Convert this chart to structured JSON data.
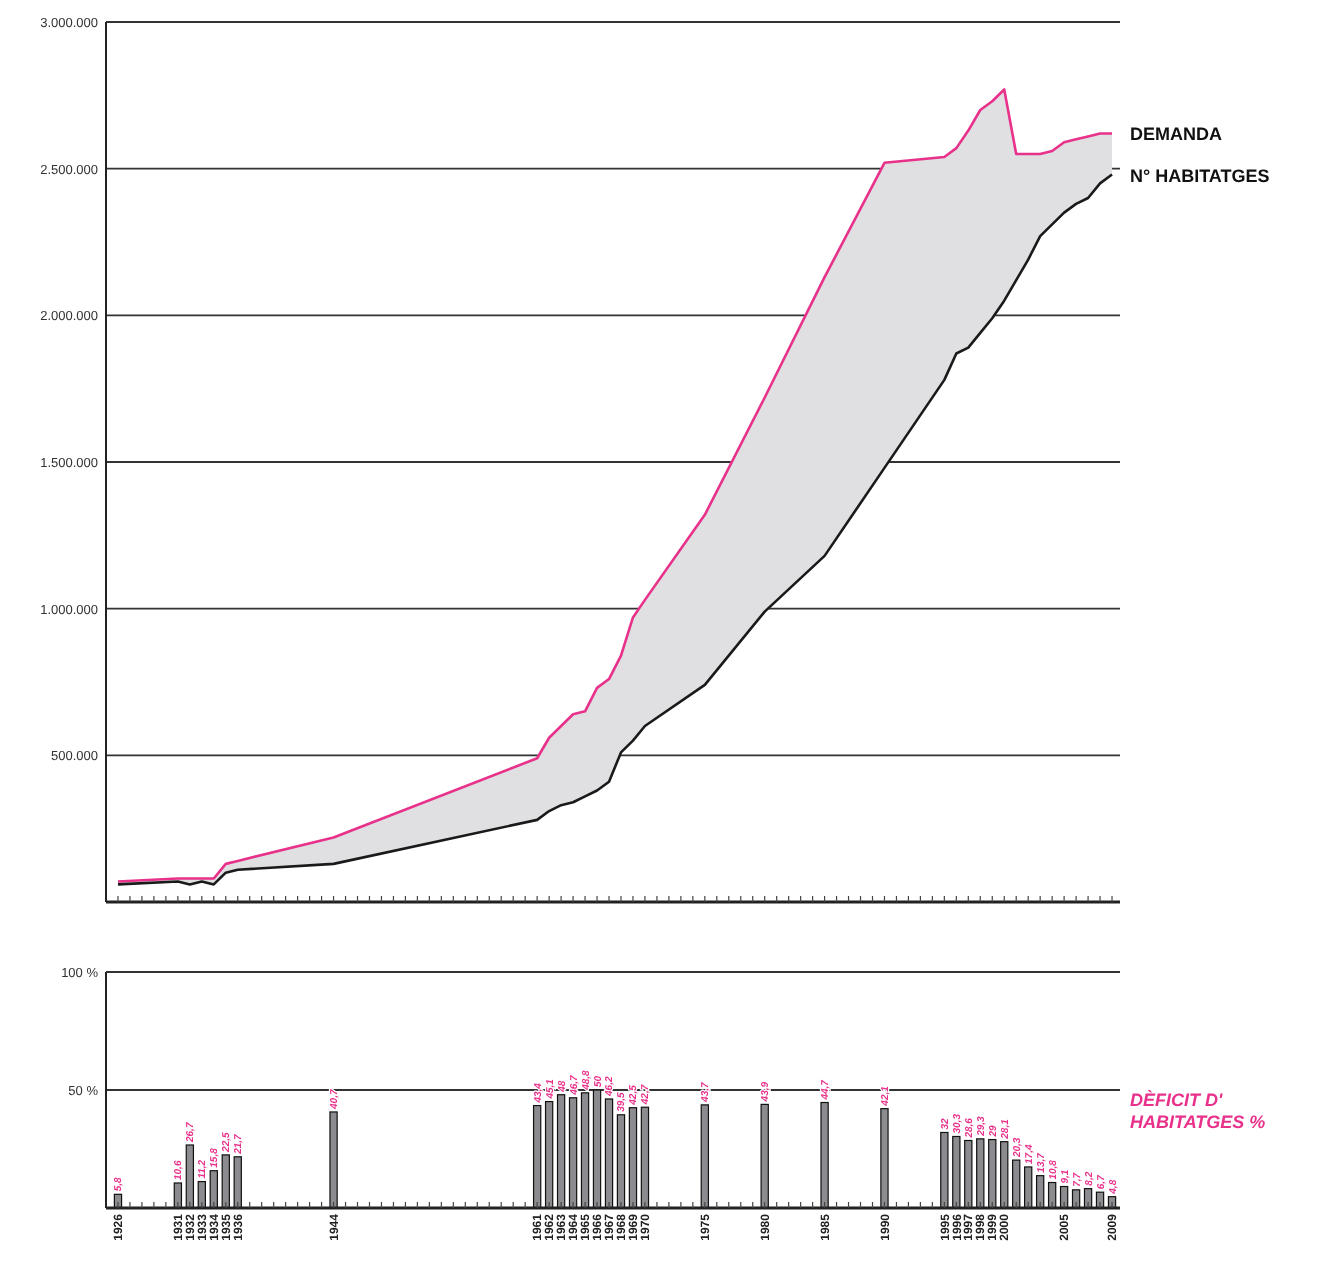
{
  "chart_data": [
    {
      "type": "line",
      "x": [
        1926,
        1931,
        1932,
        1933,
        1934,
        1935,
        1936,
        1944,
        1961,
        1962,
        1963,
        1964,
        1965,
        1966,
        1967,
        1968,
        1969,
        1970,
        1975,
        1980,
        1985,
        1990,
        1995,
        1996,
        1997,
        1998,
        1999,
        2000,
        2001,
        2002,
        2003,
        2004,
        2005,
        2006,
        2007,
        2008,
        2009
      ],
      "series": [
        {
          "name": "DEMANDA",
          "color": "#e8318a",
          "values": [
            70000,
            80000,
            80000,
            80000,
            80000,
            130000,
            140000,
            220000,
            490000,
            560000,
            600000,
            640000,
            650000,
            730000,
            760000,
            840000,
            970000,
            1030000,
            1320000,
            1720000,
            2130000,
            2520000,
            2540000,
            2570000,
            2630000,
            2700000,
            2730000,
            2770000,
            2550000,
            2550000,
            2550000,
            2560000,
            2590000,
            2600000,
            2610000,
            2620000,
            2620000
          ],
          "lower": [
            60000,
            70000,
            60000,
            70000,
            60000,
            100000,
            110000,
            130000,
            280000,
            310000,
            330000,
            340000,
            360000,
            380000,
            410000,
            510000,
            550000,
            600000,
            740000,
            990000,
            1180000,
            1480000,
            1780000,
            1870000,
            1890000,
            1940000,
            1990000,
            2050000,
            2120000,
            2190000,
            2270000,
            2310000,
            2350000,
            2380000,
            2400000,
            2450000,
            2480000
          ],
          "upper": [
            70000,
            80000,
            80000,
            80000,
            80000,
            130000,
            140000,
            220000,
            490000,
            560000,
            600000,
            640000,
            650000,
            730000,
            760000,
            840000,
            970000,
            1030000,
            1320000,
            1720000,
            2130000,
            2520000,
            2540000,
            2570000,
            2630000,
            2700000,
            2730000,
            2770000,
            2550000,
            2550000,
            2550000,
            2560000,
            2590000,
            2600000,
            2610000,
            2620000,
            2620000
          ]
        },
        {
          "name": "N° HABITATGES",
          "color": "#1a1a1a",
          "values": [
            60000,
            70000,
            60000,
            70000,
            60000,
            100000,
            110000,
            130000,
            280000,
            310000,
            330000,
            340000,
            360000,
            380000,
            410000,
            510000,
            550000,
            600000,
            740000,
            990000,
            1180000,
            1480000,
            1780000,
            1870000,
            1890000,
            1940000,
            1990000,
            2050000,
            2120000,
            2190000,
            2270000,
            2310000,
            2350000,
            2380000,
            2400000,
            2450000,
            2480000
          ]
        }
      ],
      "xlim": [
        1925,
        2010
      ],
      "xticks": [
        1926,
        1927,
        1928,
        1929,
        1930,
        1931,
        1932,
        1933,
        1934,
        1935,
        1936,
        1937,
        1938,
        1939,
        1940,
        1941,
        1942,
        1943,
        1944,
        1945,
        1946,
        1947,
        1948,
        1949,
        1950,
        1951,
        1952,
        1953,
        1954,
        1955,
        1956,
        1957,
        1958,
        1959,
        1960,
        1961,
        1962,
        1963,
        1964,
        1965,
        1966,
        1967,
        1968,
        1969,
        1970,
        1971,
        1972,
        1973,
        1974,
        1975,
        1976,
        1977,
        1978,
        1979,
        1980,
        1981,
        1982,
        1983,
        1984,
        1985,
        1986,
        1987,
        1988,
        1989,
        1990,
        1991,
        1992,
        1993,
        1994,
        1995,
        1996,
        1997,
        1998,
        1999,
        2000,
        2001,
        2002,
        2003,
        2004,
        2005,
        2006,
        2007,
        2008,
        2009
      ],
      "ylim": [
        0,
        3000000
      ],
      "yticks": [
        {
          "value": 500000,
          "label": "500.000"
        },
        {
          "value": 1000000,
          "label": "1.000.000"
        },
        {
          "value": 1500000,
          "label": "1.500.000"
        },
        {
          "value": 2000000,
          "label": "2.000.000"
        },
        {
          "value": 2500000,
          "label": "2.500.000"
        },
        {
          "value": 3000000,
          "label": "3.000.000"
        }
      ],
      "grid": "y",
      "tick_labels": "y"
    },
    {
      "type": "bar",
      "x": [
        1926,
        1931,
        1932,
        1933,
        1934,
        1935,
        1936,
        1944,
        1961,
        1962,
        1963,
        1964,
        1965,
        1966,
        1967,
        1968,
        1969,
        1970,
        1975,
        1980,
        1985,
        1990,
        1995,
        1996,
        1997,
        1998,
        1999,
        2000,
        2001,
        2002,
        2003,
        2004,
        2005,
        2006,
        2007,
        2008,
        2009
      ],
      "series": [
        {
          "name": "DÈFICIT D' HABITATGES %",
          "color": "#8c8c90",
          "values": [
            5.8,
            10.6,
            26.7,
            11.2,
            15.8,
            22.5,
            21.7,
            40.7,
            43.4,
            45.1,
            48,
            46.7,
            48.8,
            50,
            46.2,
            39.5,
            42.5,
            42.7,
            43.7,
            43.9,
            44.7,
            42.1,
            32,
            30.3,
            28.6,
            29.3,
            29,
            28.1,
            20.3,
            17.4,
            13.7,
            10.8,
            9.1,
            7.7,
            8.2,
            6.7,
            4.8
          ],
          "value_labels": [
            "5,8",
            "10,6",
            "26,7",
            "11,2",
            "15,8",
            "22,5",
            "21,7",
            "40,7",
            "43,4",
            "45,1",
            "48",
            "46,7",
            "48,8",
            "50",
            "46,2",
            "39,5",
            "42,5",
            "42,7",
            "43,7",
            "43,9",
            "44,7",
            "42,1",
            "32",
            "30,3",
            "28,6",
            "29,3",
            "29",
            "28,1",
            "20,3",
            "17,4",
            "13,7",
            "10,8",
            "9,1",
            "7,7",
            "8,2",
            "6,7",
            "4,8"
          ]
        }
      ],
      "xlim": [
        1925,
        2010
      ],
      "xticks": [
        1926,
        {
          "value": 1927,
          "label": null
        },
        {
          "value": 1928,
          "label": null
        },
        {
          "value": 1929,
          "label": null
        },
        {
          "value": 1930,
          "label": null
        },
        1931,
        1932,
        1933,
        1934,
        1935,
        1936,
        {
          "value": 1937,
          "label": null
        },
        {
          "value": 1938,
          "label": null
        },
        {
          "value": 1939,
          "label": null
        },
        {
          "value": 1940,
          "label": null
        },
        {
          "value": 1941,
          "label": null
        },
        {
          "value": 1942,
          "label": null
        },
        {
          "value": 1943,
          "label": null
        },
        1944,
        {
          "value": 1945,
          "label": null
        },
        {
          "value": 1946,
          "label": null
        },
        {
          "value": 1947,
          "label": null
        },
        {
          "value": 1948,
          "label": null
        },
        {
          "value": 1949,
          "label": null
        },
        {
          "value": 1950,
          "label": null
        },
        {
          "value": 1951,
          "label": null
        },
        {
          "value": 1952,
          "label": null
        },
        {
          "value": 1953,
          "label": null
        },
        {
          "value": 1954,
          "label": null
        },
        {
          "value": 1955,
          "label": null
        },
        {
          "value": 1956,
          "label": null
        },
        {
          "value": 1957,
          "label": null
        },
        {
          "value": 1958,
          "label": null
        },
        {
          "value": 1959,
          "label": null
        },
        {
          "value": 1960,
          "label": null
        },
        1961,
        1962,
        1963,
        1964,
        1965,
        1966,
        1967,
        1968,
        1969,
        1970,
        {
          "value": 1971,
          "label": null
        },
        {
          "value": 1972,
          "label": null
        },
        {
          "value": 1973,
          "label": null
        },
        {
          "value": 1974,
          "label": null
        },
        1975,
        {
          "value": 1976,
          "label": null
        },
        {
          "value": 1977,
          "label": null
        },
        {
          "value": 1978,
          "label": null
        },
        {
          "value": 1979,
          "label": null
        },
        1980,
        {
          "value": 1981,
          "label": null
        },
        {
          "value": 1982,
          "label": null
        },
        {
          "value": 1983,
          "label": null
        },
        {
          "value": 1984,
          "label": null
        },
        1985,
        {
          "value": 1986,
          "label": null
        },
        {
          "value": 1987,
          "label": null
        },
        {
          "value": 1988,
          "label": null
        },
        {
          "value": 1989,
          "label": null
        },
        1990,
        {
          "value": 1991,
          "label": null
        },
        {
          "value": 1992,
          "label": null
        },
        {
          "value": 1993,
          "label": null
        },
        {
          "value": 1994,
          "label": null
        },
        1995,
        1996,
        1997,
        1998,
        1999,
        2000,
        {
          "value": 2001,
          "label": null
        },
        {
          "value": 2002,
          "label": null
        },
        {
          "value": 2003,
          "label": null
        },
        {
          "value": 2004,
          "label": null
        },
        2005,
        {
          "value": 2006,
          "label": null
        },
        {
          "value": 2007,
          "label": null
        },
        {
          "value": 2008,
          "label": null
        },
        2009
      ],
      "ylim": [
        0,
        100
      ],
      "yticks": [
        {
          "value": 50,
          "label": "50 %"
        },
        {
          "value": 100,
          "label": "100 %"
        }
      ],
      "grid": "y"
    }
  ]
}
